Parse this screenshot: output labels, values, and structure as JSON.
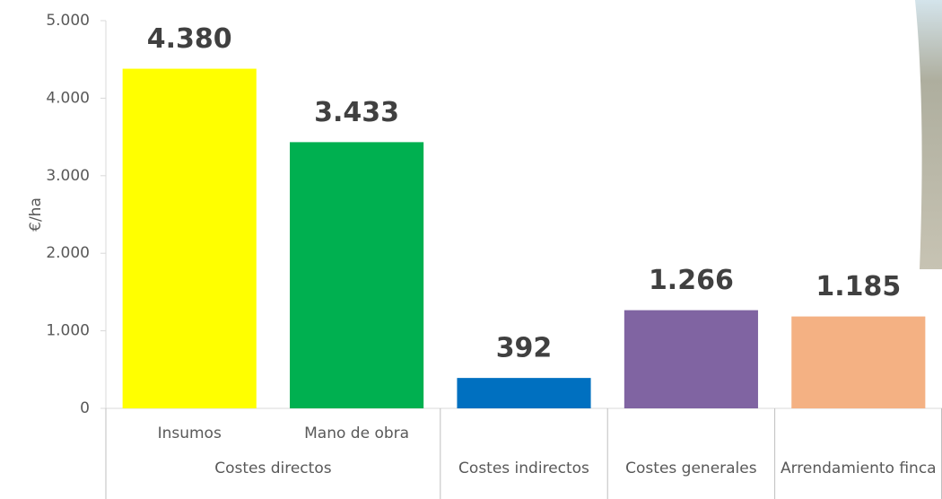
{
  "chart_data": {
    "type": "bar",
    "y_label": "€/ha",
    "categories": [
      "Insumos",
      "Mano de obra",
      null,
      null,
      null
    ],
    "category_groups": [
      "Costes directos",
      "Costes directos",
      "Costes indirectos",
      "Costes generales",
      "Arrendamiento finca"
    ],
    "values": [
      4380,
      3433,
      392,
      1266,
      1185
    ],
    "value_labels": [
      "4.380",
      "3.433",
      "392",
      "1.266",
      "1.185"
    ],
    "colors": [
      "#ffff00",
      "#00b050",
      "#0070c0",
      "#8064a2",
      "#f4b183"
    ],
    "ylim": [
      0,
      5000
    ],
    "yticks": [
      0,
      {
        "value": 1000,
        "label": "1.000"
      },
      {
        "value": 2000,
        "label": "2.000"
      },
      {
        "value": 3000,
        "label": "3.000"
      },
      {
        "value": 4000,
        "label": "4.000"
      },
      {
        "value": 5000,
        "label": "5.000"
      }
    ],
    "grid": false
  }
}
